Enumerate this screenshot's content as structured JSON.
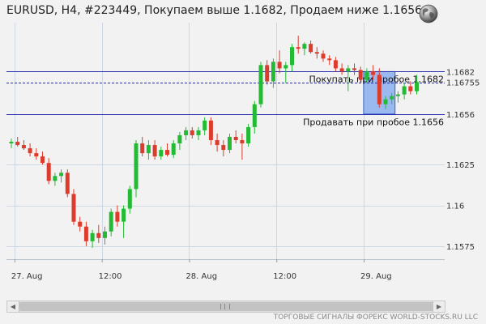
{
  "title": "EURUSD, H4, #223449, Покупаем выше 1.1682, Продаем ниже 1.1656",
  "footer": "ТОРГОВЫЕ СИГНАЛЫ ФОРЕКС WORLD-STOCKS.RU LLC",
  "icons": {
    "globe": "globe-icon",
    "scroll_left": "arrow-left-icon",
    "scroll_right": "arrow-right-icon"
  },
  "chart_data": {
    "type": "candlestick",
    "symbol": "EURUSD",
    "timeframe": "H4",
    "x_tick_labels": [
      "27. Aug",
      "12:00",
      "28. Aug",
      "12:00",
      "29. Aug"
    ],
    "x_tick_positions": [
      0.5,
      14.5,
      28.5,
      42.5,
      56.5
    ],
    "y_tick_values": [
      1.1575,
      1.16,
      1.1625,
      1.1656,
      1.16755,
      1.1682
    ],
    "y_tick_labels": [
      "1.1575",
      "1.16",
      "1.1625",
      "1.1656",
      "1.16755",
      "1.1682"
    ],
    "ylim": [
      1.1567,
      1.1712
    ],
    "levels": [
      {
        "name": "buy",
        "value": 1.1682,
        "label": "Покупать при пробое 1.1682",
        "color": "#2a2ab0"
      },
      {
        "name": "sell",
        "value": 1.1656,
        "label": "Продавать при пробое 1.1656",
        "color": "#2a2ab0"
      }
    ],
    "current_price": {
      "value": 1.16755,
      "label": "1.16755",
      "color": "#2a2ab0"
    },
    "highlight_range": {
      "x_start": 57,
      "x_end": 61,
      "y_low": 1.1656,
      "y_high": 1.1682,
      "color": "#8fb2ef"
    },
    "colors": {
      "up": "#22bb33",
      "down": "#dd3c2c",
      "grid": "#cdd8e4"
    },
    "candles": [
      [
        1.1638,
        1.1641,
        1.1635,
        1.1639
      ],
      [
        1.1639,
        1.1642,
        1.1636,
        1.1637
      ],
      [
        1.1637,
        1.164,
        1.1634,
        1.1635
      ],
      [
        1.1635,
        1.1638,
        1.163,
        1.1632
      ],
      [
        1.1632,
        1.1635,
        1.1628,
        1.163
      ],
      [
        1.163,
        1.1633,
        1.1625,
        1.1626
      ],
      [
        1.1626,
        1.1629,
        1.1613,
        1.1615
      ],
      [
        1.1615,
        1.162,
        1.1612,
        1.1618
      ],
      [
        1.1618,
        1.1622,
        1.1614,
        1.162
      ],
      [
        1.162,
        1.1622,
        1.1605,
        1.1607
      ],
      [
        1.1607,
        1.161,
        1.1588,
        1.159
      ],
      [
        1.159,
        1.1593,
        1.1584,
        1.1587
      ],
      [
        1.1587,
        1.159,
        1.1575,
        1.1578
      ],
      [
        1.1578,
        1.1585,
        1.1574,
        1.1583
      ],
      [
        1.1583,
        1.1588,
        1.1577,
        1.158
      ],
      [
        1.158,
        1.1587,
        1.1576,
        1.1584
      ],
      [
        1.1584,
        1.1598,
        1.1581,
        1.1596
      ],
      [
        1.1596,
        1.16,
        1.1587,
        1.159
      ],
      [
        1.159,
        1.16,
        1.158,
        1.1598
      ],
      [
        1.1598,
        1.1612,
        1.1595,
        1.161
      ],
      [
        1.161,
        1.164,
        1.1605,
        1.1638
      ],
      [
        1.1638,
        1.1642,
        1.163,
        1.1632
      ],
      [
        1.1632,
        1.164,
        1.1628,
        1.1637
      ],
      [
        1.1637,
        1.164,
        1.1628,
        1.163
      ],
      [
        1.163,
        1.1636,
        1.1628,
        1.1634
      ],
      [
        1.1634,
        1.1638,
        1.163,
        1.1631
      ],
      [
        1.1631,
        1.164,
        1.1629,
        1.1638
      ],
      [
        1.1638,
        1.1645,
        1.1634,
        1.1643
      ],
      [
        1.1643,
        1.1648,
        1.164,
        1.1646
      ],
      [
        1.1646,
        1.1648,
        1.1641,
        1.1643
      ],
      [
        1.1643,
        1.1648,
        1.164,
        1.1646
      ],
      [
        1.1646,
        1.1654,
        1.1643,
        1.1652
      ],
      [
        1.1652,
        1.1654,
        1.1637,
        1.164
      ],
      [
        1.164,
        1.1644,
        1.1633,
        1.1637
      ],
      [
        1.1637,
        1.164,
        1.163,
        1.1634
      ],
      [
        1.1634,
        1.1644,
        1.1632,
        1.1642
      ],
      [
        1.1642,
        1.1646,
        1.1638,
        1.164
      ],
      [
        1.164,
        1.1644,
        1.1628,
        1.1638
      ],
      [
        1.1638,
        1.165,
        1.1636,
        1.1648
      ],
      [
        1.1648,
        1.1664,
        1.1644,
        1.1662
      ],
      [
        1.1662,
        1.1688,
        1.166,
        1.1686
      ],
      [
        1.1686,
        1.1689,
        1.1674,
        1.1676
      ],
      [
        1.1676,
        1.169,
        1.1672,
        1.1688
      ],
      [
        1.1688,
        1.1695,
        1.1681,
        1.1684
      ],
      [
        1.1684,
        1.1688,
        1.1675,
        1.1686
      ],
      [
        1.1686,
        1.1699,
        1.1682,
        1.1697
      ],
      [
        1.1697,
        1.1704,
        1.1693,
        1.1696
      ],
      [
        1.1696,
        1.17,
        1.1692,
        1.1699
      ],
      [
        1.1699,
        1.1701,
        1.1693,
        1.1694
      ],
      [
        1.1694,
        1.1697,
        1.169,
        1.1693
      ],
      [
        1.1693,
        1.1695,
        1.1688,
        1.169
      ],
      [
        1.169,
        1.1692,
        1.1686,
        1.1689
      ],
      [
        1.1689,
        1.1691,
        1.1682,
        1.1684
      ],
      [
        1.1684,
        1.1687,
        1.168,
        1.1682
      ],
      [
        1.1682,
        1.1686,
        1.167,
        1.1684
      ],
      [
        1.1684,
        1.1687,
        1.168,
        1.1683
      ],
      [
        1.1683,
        1.1685,
        1.1675,
        1.1677
      ],
      [
        1.1677,
        1.1684,
        1.1675,
        1.1682
      ],
      [
        1.1682,
        1.1686,
        1.1677,
        1.168
      ],
      [
        1.168,
        1.1684,
        1.166,
        1.1662
      ],
      [
        1.1662,
        1.1667,
        1.1659,
        1.1665
      ],
      [
        1.1665,
        1.1669,
        1.1662,
        1.1667
      ],
      [
        1.1667,
        1.167,
        1.1663,
        1.1668
      ],
      [
        1.1668,
        1.1675,
        1.1665,
        1.1673
      ],
      [
        1.1673,
        1.1676,
        1.1668,
        1.167
      ],
      [
        1.167,
        1.168,
        1.1668,
        1.16755
      ]
    ]
  }
}
